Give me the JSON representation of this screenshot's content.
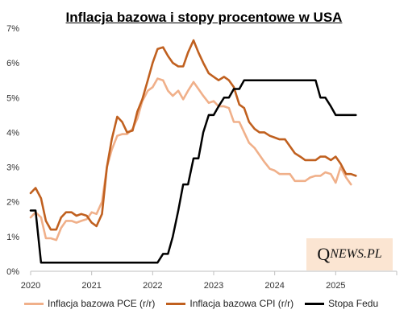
{
  "chart_data": {
    "type": "line",
    "title": "Inflacja bazowa i stopy procentowe w USA",
    "xlabel": "",
    "ylabel": "",
    "xlim": [
      2020.0,
      2026.0
    ],
    "ylim": [
      0,
      7
    ],
    "x_ticks": [
      "2020",
      "2021",
      "2022",
      "2023",
      "2024",
      "2025"
    ],
    "y_ticks": [
      "0%",
      "1%",
      "2%",
      "3%",
      "4%",
      "5%",
      "6%",
      "7%"
    ],
    "grid": false,
    "legend_position": "bottom",
    "series": [
      {
        "name": "Inflacja bazowa PCE (r/r)",
        "color": "#f0b08a",
        "x": [
          2020.0,
          2020.08,
          2020.17,
          2020.25,
          2020.33,
          2020.42,
          2020.5,
          2020.58,
          2020.67,
          2020.75,
          2020.83,
          2020.92,
          2021.0,
          2021.08,
          2021.17,
          2021.25,
          2021.33,
          2021.42,
          2021.5,
          2021.58,
          2021.67,
          2021.75,
          2021.83,
          2021.92,
          2022.0,
          2022.08,
          2022.17,
          2022.25,
          2022.33,
          2022.42,
          2022.5,
          2022.58,
          2022.67,
          2022.75,
          2022.83,
          2022.92,
          2023.0,
          2023.08,
          2023.17,
          2023.25,
          2023.33,
          2023.42,
          2023.5,
          2023.58,
          2023.67,
          2023.75,
          2023.83,
          2023.92,
          2024.0,
          2024.08,
          2024.17,
          2024.25,
          2024.33,
          2024.42,
          2024.5,
          2024.58,
          2024.67,
          2024.75,
          2024.83,
          2024.92,
          2025.0,
          2025.08,
          2025.17,
          2025.25
        ],
        "values": [
          1.55,
          1.7,
          1.55,
          0.95,
          0.95,
          0.9,
          1.25,
          1.45,
          1.45,
          1.4,
          1.45,
          1.5,
          1.7,
          1.65,
          2.0,
          3.0,
          3.5,
          3.9,
          3.95,
          3.95,
          4.1,
          4.4,
          4.9,
          5.2,
          5.3,
          5.55,
          5.5,
          5.2,
          5.05,
          5.2,
          4.95,
          5.2,
          5.45,
          5.25,
          5.05,
          4.85,
          4.9,
          4.75,
          4.75,
          4.7,
          4.3,
          4.3,
          4.0,
          3.7,
          3.55,
          3.35,
          3.15,
          2.95,
          2.9,
          2.8,
          2.8,
          2.8,
          2.6,
          2.6,
          2.6,
          2.7,
          2.75,
          2.75,
          2.85,
          2.8,
          2.55,
          3.0,
          2.7,
          2.5
        ]
      },
      {
        "name": "Inflacja bazowa CPI (r/r)",
        "color": "#c0601f",
        "x": [
          2020.0,
          2020.08,
          2020.17,
          2020.25,
          2020.33,
          2020.42,
          2020.5,
          2020.58,
          2020.67,
          2020.75,
          2020.83,
          2020.92,
          2021.0,
          2021.08,
          2021.17,
          2021.25,
          2021.33,
          2021.42,
          2021.5,
          2021.58,
          2021.67,
          2021.75,
          2021.83,
          2021.92,
          2022.0,
          2022.08,
          2022.17,
          2022.25,
          2022.33,
          2022.42,
          2022.5,
          2022.58,
          2022.67,
          2022.75,
          2022.83,
          2022.92,
          2023.0,
          2023.08,
          2023.17,
          2023.25,
          2023.33,
          2023.42,
          2023.5,
          2023.58,
          2023.67,
          2023.75,
          2023.83,
          2023.92,
          2024.0,
          2024.08,
          2024.17,
          2024.25,
          2024.33,
          2024.42,
          2024.5,
          2024.58,
          2024.67,
          2024.75,
          2024.83,
          2024.92,
          2025.0,
          2025.08,
          2025.17,
          2025.25,
          2025.33
        ],
        "values": [
          2.25,
          2.4,
          2.1,
          1.45,
          1.2,
          1.2,
          1.55,
          1.7,
          1.7,
          1.6,
          1.65,
          1.6,
          1.4,
          1.3,
          1.65,
          3.0,
          3.8,
          4.45,
          4.3,
          4.0,
          4.05,
          4.6,
          4.95,
          5.5,
          6.0,
          6.4,
          6.45,
          6.2,
          6.0,
          5.9,
          5.9,
          6.3,
          6.65,
          6.3,
          6.0,
          5.7,
          5.6,
          5.5,
          5.6,
          5.5,
          5.3,
          4.8,
          4.7,
          4.3,
          4.1,
          4.0,
          4.0,
          3.9,
          3.85,
          3.8,
          3.8,
          3.6,
          3.4,
          3.3,
          3.2,
          3.2,
          3.2,
          3.3,
          3.3,
          3.2,
          3.3,
          3.1,
          2.8,
          2.8,
          2.75
        ]
      },
      {
        "name": "Stopa Fedu",
        "color": "#000000",
        "x": [
          2020.0,
          2020.08,
          2020.17,
          2020.25,
          2020.33,
          2020.42,
          2020.5,
          2020.58,
          2020.67,
          2020.75,
          2020.83,
          2020.92,
          2021.0,
          2021.08,
          2021.17,
          2021.25,
          2021.33,
          2021.42,
          2021.5,
          2021.58,
          2021.67,
          2021.75,
          2021.83,
          2021.92,
          2022.0,
          2022.08,
          2022.17,
          2022.25,
          2022.33,
          2022.42,
          2022.5,
          2022.58,
          2022.67,
          2022.75,
          2022.83,
          2022.92,
          2023.0,
          2023.08,
          2023.17,
          2023.25,
          2023.33,
          2023.42,
          2023.5,
          2023.58,
          2023.67,
          2023.75,
          2023.83,
          2023.92,
          2024.0,
          2024.08,
          2024.17,
          2024.25,
          2024.33,
          2024.42,
          2024.5,
          2024.58,
          2024.67,
          2024.75,
          2024.83,
          2024.92,
          2025.0,
          2025.08,
          2025.17,
          2025.25,
          2025.33
        ],
        "values": [
          1.75,
          1.75,
          0.25,
          0.25,
          0.25,
          0.25,
          0.25,
          0.25,
          0.25,
          0.25,
          0.25,
          0.25,
          0.25,
          0.25,
          0.25,
          0.25,
          0.25,
          0.25,
          0.25,
          0.25,
          0.25,
          0.25,
          0.25,
          0.25,
          0.25,
          0.25,
          0.5,
          0.5,
          1.0,
          1.75,
          2.5,
          2.5,
          3.25,
          3.25,
          4.0,
          4.5,
          4.5,
          4.75,
          5.0,
          5.0,
          5.25,
          5.25,
          5.5,
          5.5,
          5.5,
          5.5,
          5.5,
          5.5,
          5.5,
          5.5,
          5.5,
          5.5,
          5.5,
          5.5,
          5.5,
          5.5,
          5.5,
          5.0,
          5.0,
          4.75,
          4.5,
          4.5,
          4.5,
          4.5,
          4.5
        ]
      }
    ]
  },
  "watermark": {
    "first": "Q",
    "rest": "NEWS.PL"
  }
}
